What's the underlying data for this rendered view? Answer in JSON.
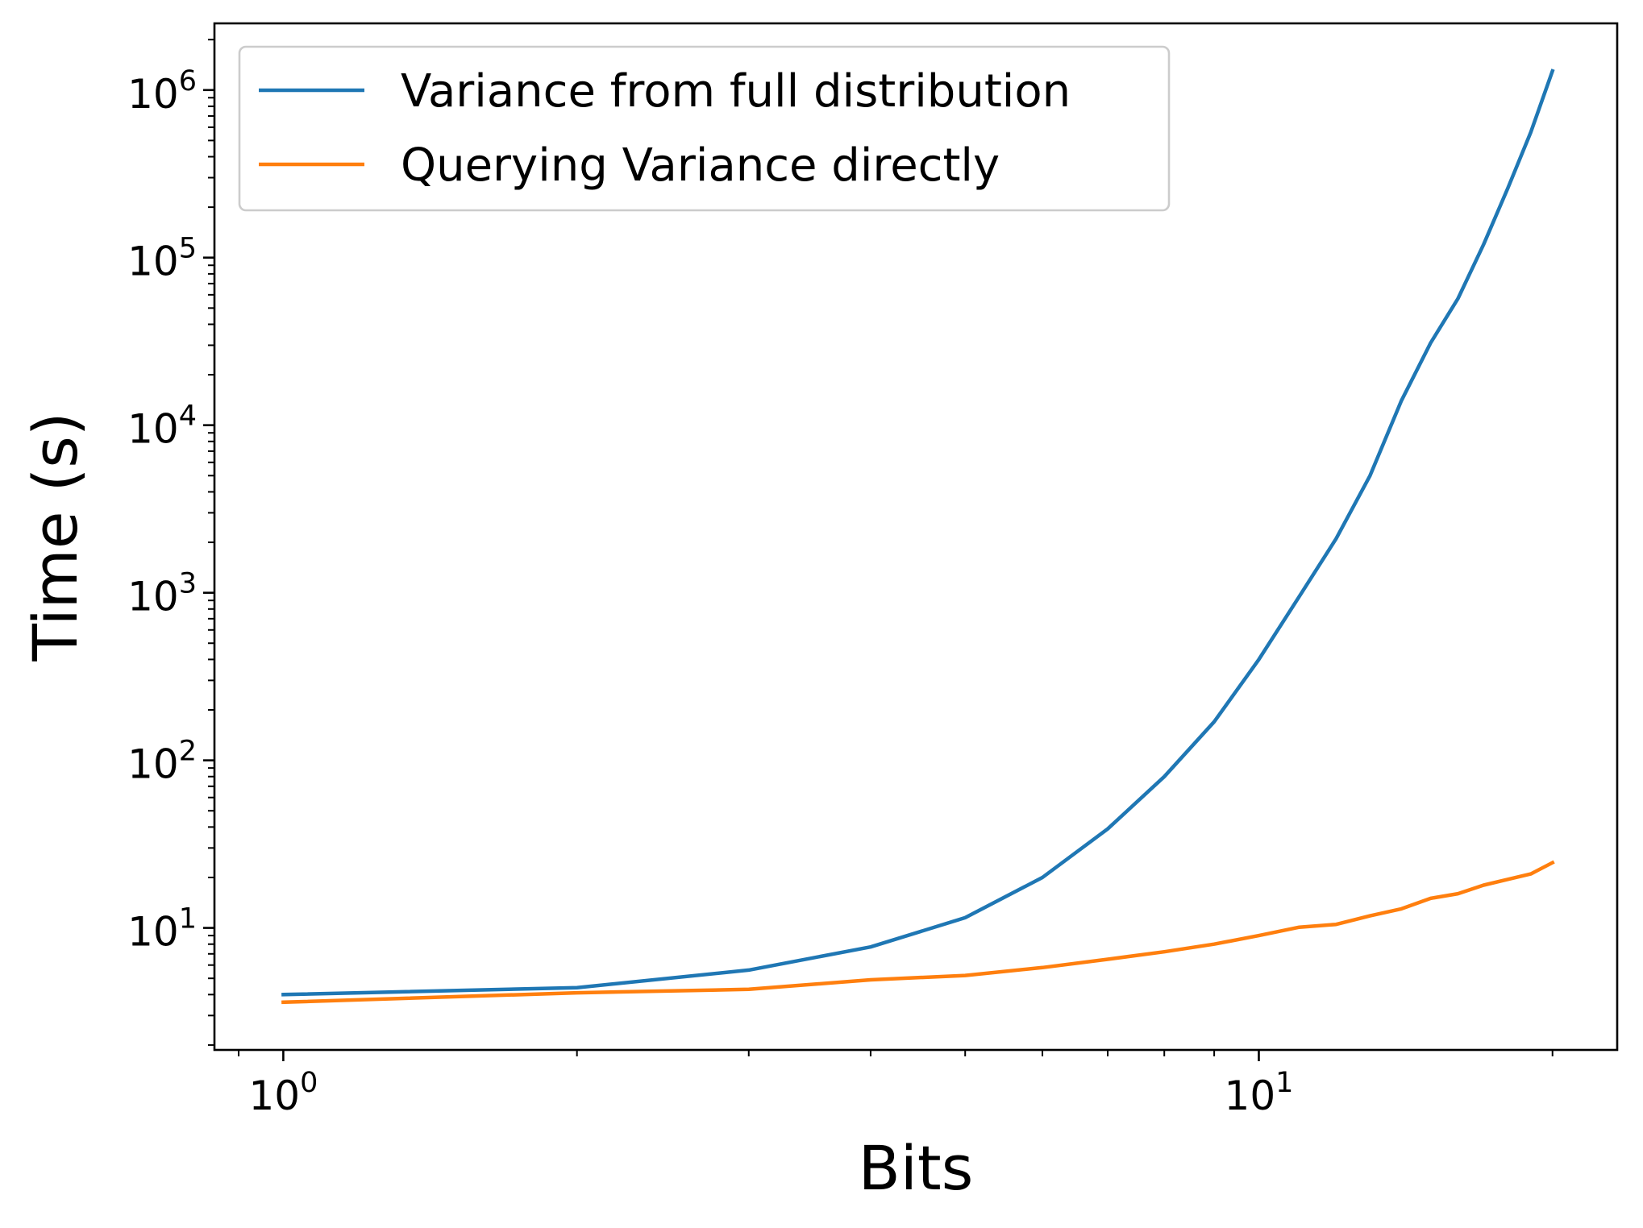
{
  "chart_data": {
    "type": "line",
    "title": "",
    "xlabel": "Bits",
    "ylabel": "Time (s)",
    "xscale": "log",
    "yscale": "log",
    "xlim": [
      0.85,
      23.3
    ],
    "ylim": [
      1.87,
      2500000
    ],
    "grid": false,
    "legend_position": "top-left",
    "x_ticks": [
      {
        "value": 1,
        "base": "10",
        "exp": "0"
      },
      {
        "value": 10,
        "base": "10",
        "exp": "1"
      }
    ],
    "y_ticks": [
      {
        "value": 10,
        "base": "10",
        "exp": "1"
      },
      {
        "value": 100,
        "base": "10",
        "exp": "2"
      },
      {
        "value": 1000,
        "base": "10",
        "exp": "3"
      },
      {
        "value": 10000,
        "base": "10",
        "exp": "4"
      },
      {
        "value": 100000,
        "base": "10",
        "exp": "5"
      },
      {
        "value": 1000000,
        "base": "10",
        "exp": "6"
      }
    ],
    "series": [
      {
        "name": "Variance from full distribution",
        "color": "#1f77b4",
        "x": [
          1,
          2,
          3,
          4,
          5,
          6,
          7,
          8,
          9,
          10,
          11,
          12,
          13,
          14,
          15,
          16,
          17,
          18,
          19,
          20
        ],
        "y": [
          4.0,
          4.4,
          5.6,
          7.7,
          11.5,
          20,
          39,
          80,
          170,
          400,
          950,
          2100,
          5000,
          14000,
          31000,
          57000,
          120000,
          260000,
          560000,
          1300000
        ]
      },
      {
        "name": "Querying Variance directly",
        "color": "#ff7f0e",
        "x": [
          1,
          2,
          3,
          4,
          5,
          6,
          7,
          8,
          9,
          10,
          11,
          12,
          13,
          14,
          15,
          16,
          17,
          18,
          19,
          20
        ],
        "y": [
          3.6,
          4.1,
          4.3,
          4.9,
          5.2,
          5.8,
          6.5,
          7.2,
          8.0,
          9.0,
          10.1,
          10.5,
          11.8,
          13.0,
          15.0,
          16.0,
          18.0,
          19.5,
          21.0,
          24.5
        ]
      }
    ]
  }
}
